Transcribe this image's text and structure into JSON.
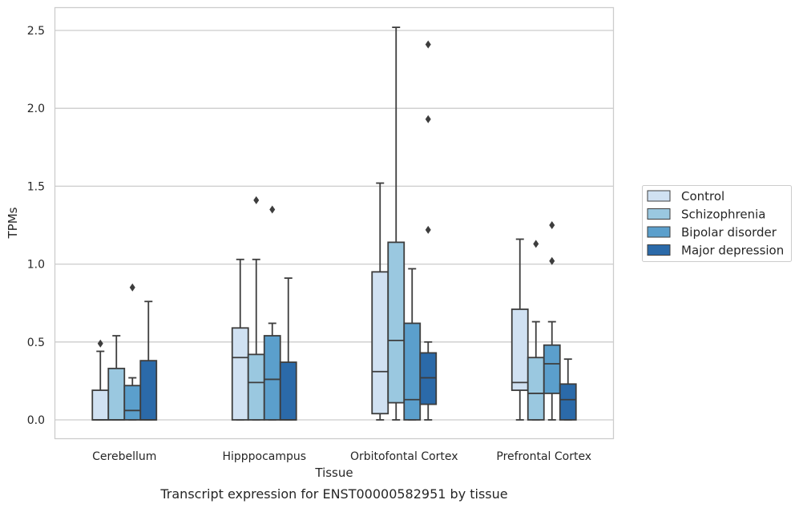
{
  "chart_data": {
    "type": "box",
    "xlabel": "Tissue",
    "ylabel": "TPMs",
    "caption": "Transcript expression for ENST00000582951 by tissue",
    "ylim": [
      -0.12,
      2.63
    ],
    "yticks": [
      0.0,
      0.5,
      1.0,
      1.5,
      2.0,
      2.5
    ],
    "ytick_labels": [
      "0.0",
      "0.5",
      "1.0",
      "1.5",
      "2.0",
      "2.5"
    ],
    "grid": "horizontal",
    "legend_position": "right",
    "categories": [
      "Cerebellum",
      "Hipppocampus",
      "Orbitofontal Cortex",
      "Prefrontal Cortex"
    ],
    "series": [
      {
        "name": "Control",
        "color": "#d0e1f2",
        "boxes": [
          {
            "whislo": 0.0,
            "q1": 0.0,
            "med": 0.0,
            "q3": 0.19,
            "whishi": 0.44,
            "fliers": [
              0.49
            ]
          },
          {
            "whislo": 0.0,
            "q1": 0.0,
            "med": 0.4,
            "q3": 0.59,
            "whishi": 1.03,
            "fliers": []
          },
          {
            "whislo": 0.0,
            "q1": 0.04,
            "med": 0.31,
            "q3": 0.95,
            "whishi": 1.52,
            "fliers": []
          },
          {
            "whislo": 0.0,
            "q1": 0.19,
            "med": 0.24,
            "q3": 0.71,
            "whishi": 1.16,
            "fliers": []
          }
        ]
      },
      {
        "name": "Schizophrenia",
        "color": "#9ac8e0",
        "boxes": [
          {
            "whislo": 0.0,
            "q1": 0.0,
            "med": 0.0,
            "q3": 0.33,
            "whishi": 0.54,
            "fliers": []
          },
          {
            "whislo": 0.0,
            "q1": 0.0,
            "med": 0.24,
            "q3": 0.42,
            "whishi": 1.03,
            "fliers": [
              1.41
            ]
          },
          {
            "whislo": 0.0,
            "q1": 0.11,
            "med": 0.51,
            "q3": 1.14,
            "whishi": 2.52,
            "fliers": []
          },
          {
            "whislo": 0.0,
            "q1": 0.0,
            "med": 0.17,
            "q3": 0.4,
            "whishi": 0.63,
            "fliers": [
              1.13
            ]
          }
        ]
      },
      {
        "name": "Bipolar disorder",
        "color": "#5b9fcc",
        "boxes": [
          {
            "whislo": 0.0,
            "q1": 0.0,
            "med": 0.06,
            "q3": 0.22,
            "whishi": 0.27,
            "fliers": [
              0.85
            ]
          },
          {
            "whislo": 0.0,
            "q1": 0.0,
            "med": 0.26,
            "q3": 0.54,
            "whishi": 0.62,
            "fliers": [
              1.35
            ]
          },
          {
            "whislo": 0.0,
            "q1": 0.0,
            "med": 0.13,
            "q3": 0.62,
            "whishi": 0.97,
            "fliers": []
          },
          {
            "whislo": 0.0,
            "q1": 0.17,
            "med": 0.36,
            "q3": 0.48,
            "whishi": 0.63,
            "fliers": [
              1.02,
              1.25
            ]
          }
        ]
      },
      {
        "name": "Major depression",
        "color": "#2b6aa9",
        "boxes": [
          {
            "whislo": 0.0,
            "q1": 0.0,
            "med": 0.0,
            "q3": 0.38,
            "whishi": 0.76,
            "fliers": []
          },
          {
            "whislo": 0.0,
            "q1": 0.0,
            "med": 0.0,
            "q3": 0.37,
            "whishi": 0.91,
            "fliers": []
          },
          {
            "whislo": 0.0,
            "q1": 0.1,
            "med": 0.27,
            "q3": 0.43,
            "whishi": 0.5,
            "fliers": [
              1.22,
              1.93,
              2.41
            ]
          },
          {
            "whislo": 0.0,
            "q1": 0.0,
            "med": 0.13,
            "q3": 0.23,
            "whishi": 0.39,
            "fliers": []
          }
        ]
      }
    ]
  }
}
